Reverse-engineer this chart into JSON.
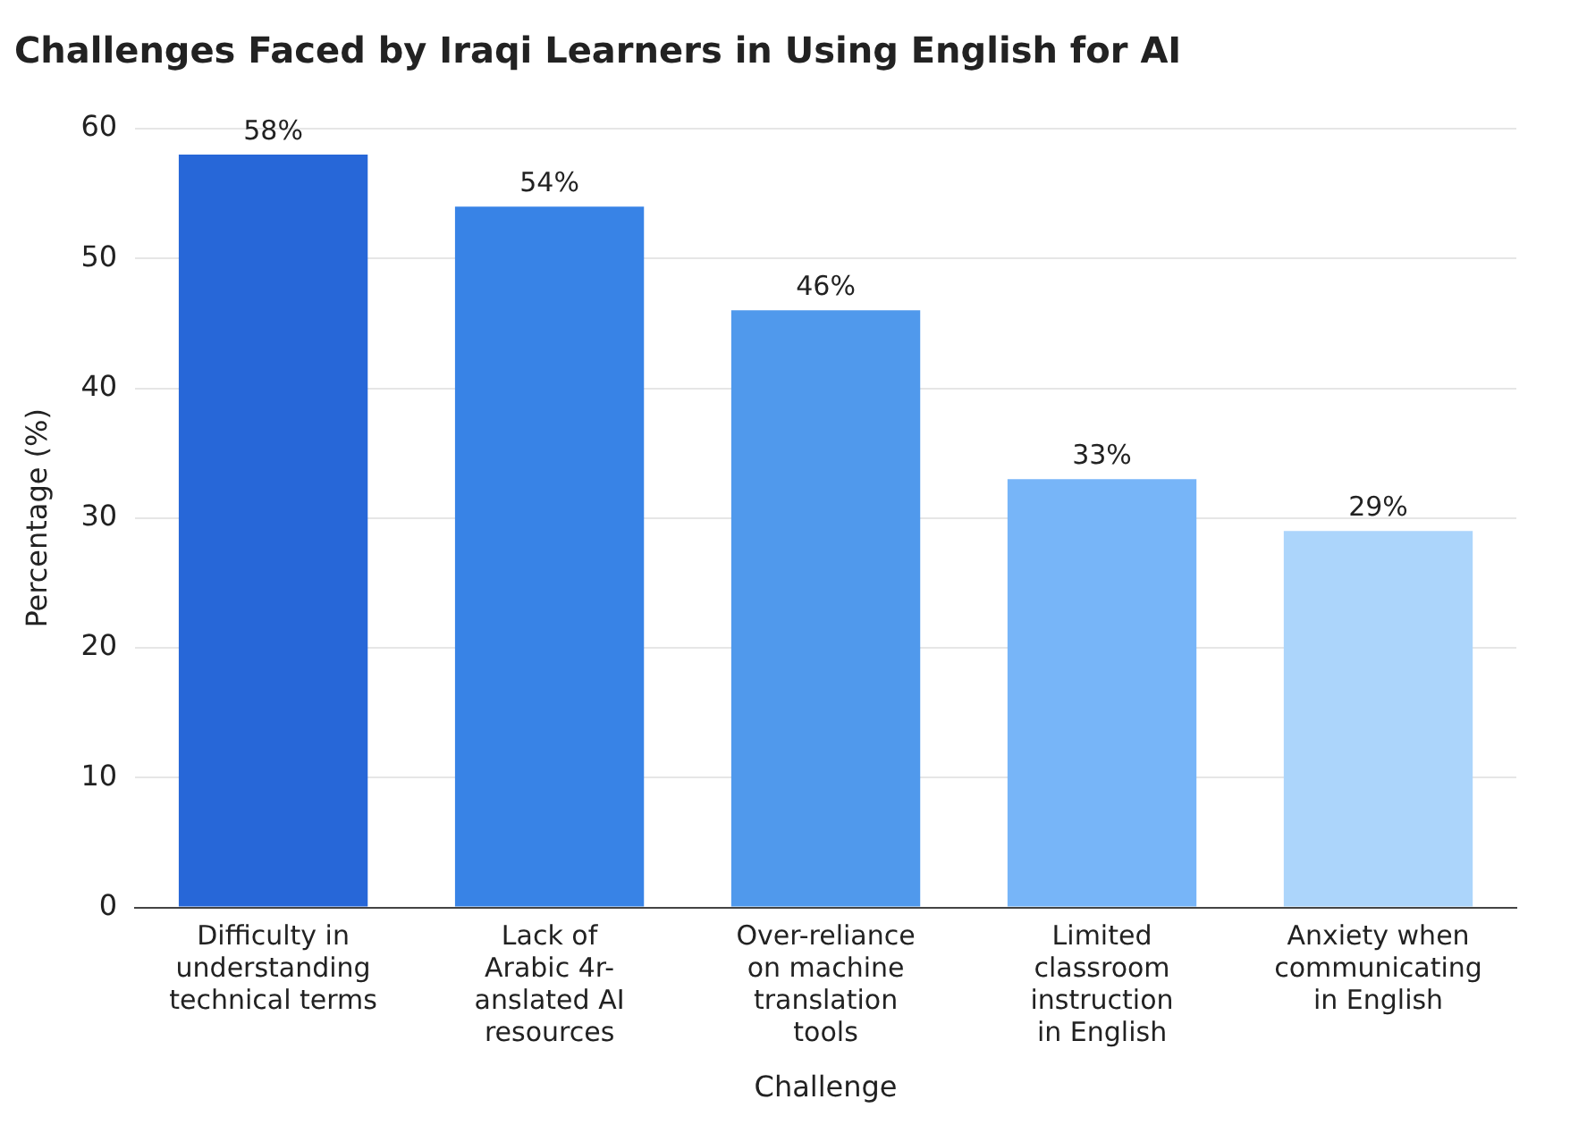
{
  "chart_data": {
    "type": "bar",
    "title": "Challenges Faced by Iraqi Learners in Using English for AI",
    "xlabel": "Challenge",
    "ylabel": "Percentage (%)",
    "categories": [
      "Difficulty in\nunderstanding\ntechnical terms",
      "Lack of\nArabic 4r-\nanslated AI\nresources",
      "Over-reliance\non machine\ntranslation\ntools",
      "Limited\nclassroom\ninstruction\nin English",
      "Anxiety when\ncommunicating\nin English"
    ],
    "values": [
      58,
      54,
      46,
      33,
      29
    ],
    "value_labels": [
      "58%",
      "54%",
      "46%",
      "33%",
      "29%"
    ],
    "colors": [
      "#2767d8",
      "#3883e6",
      "#5099ec",
      "#77b5f8",
      "#acd5fb"
    ],
    "ylim": [
      0,
      60
    ],
    "yticks": [
      0,
      10,
      20,
      30,
      40,
      50,
      60
    ],
    "grid": "y",
    "legend": false
  }
}
